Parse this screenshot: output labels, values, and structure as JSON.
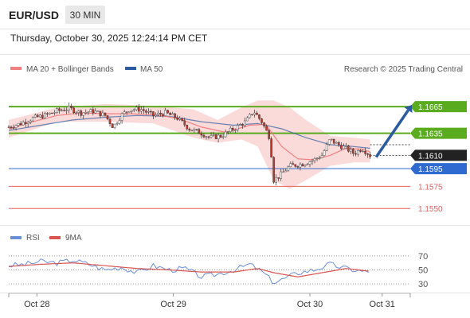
{
  "header": {
    "symbol": "EUR/USD",
    "timeframe": "30 MIN",
    "timestamp": "Thursday, October 30, 2025 12:24:14 PM CET"
  },
  "legend": {
    "ma20_label": "MA 20 + Bollinger Bands",
    "ma50_label": "MA 50",
    "credit": "Research © 2025 Trading Central",
    "rsi_label": "RSI",
    "rsi_ma_label": "9MA"
  },
  "colors": {
    "ma20": "#f08080",
    "ma50": "#2c5aa0",
    "bollinger_fill": "#fad4d4",
    "resistance": "#5aab1e",
    "support_blue": "#2f6ad0",
    "support_red": "#e06060",
    "candle": "#c0392b",
    "arrow": "#2c5aa0",
    "rsi": "#6a8fd8",
    "rsi_ma": "#d9534f"
  },
  "chart_data": [
    {
      "type": "candlestick",
      "title": "",
      "x_ticks": [
        "Oct 28",
        "Oct 29",
        "Oct 30",
        "Oct 31"
      ],
      "current_price": 1.161,
      "levels": [
        {
          "label": "1.1665",
          "value": 1.1665,
          "kind": "resistance"
        },
        {
          "label": "1.1635",
          "value": 1.1635,
          "kind": "resistance"
        },
        {
          "label": "1.1595",
          "value": 1.1595,
          "kind": "support"
        },
        {
          "label": "1.1575",
          "value": 1.1575,
          "kind": "support_minor"
        },
        {
          "label": "1.1550",
          "value": 1.155,
          "kind": "support_minor"
        }
      ],
      "projection": {
        "from": 1.1608,
        "to": 1.1665,
        "direction": "up"
      },
      "ylim": [
        1.1534,
        1.1693
      ],
      "xlim": [
        0,
        100
      ],
      "close_series": [
        {
          "x": 0,
          "y": 1.1642
        },
        {
          "x": 3,
          "y": 1.1646
        },
        {
          "x": 6,
          "y": 1.1652
        },
        {
          "x": 9,
          "y": 1.1655
        },
        {
          "x": 12,
          "y": 1.166
        },
        {
          "x": 15,
          "y": 1.1663
        },
        {
          "x": 18,
          "y": 1.1658
        },
        {
          "x": 21,
          "y": 1.166
        },
        {
          "x": 24,
          "y": 1.1655
        },
        {
          "x": 26,
          "y": 1.1642
        },
        {
          "x": 28,
          "y": 1.1655
        },
        {
          "x": 30,
          "y": 1.1662
        },
        {
          "x": 33,
          "y": 1.1662
        },
        {
          "x": 36,
          "y": 1.1655
        },
        {
          "x": 39,
          "y": 1.1658
        },
        {
          "x": 42,
          "y": 1.1652
        },
        {
          "x": 45,
          "y": 1.164
        },
        {
          "x": 48,
          "y": 1.1635
        },
        {
          "x": 50,
          "y": 1.163
        },
        {
          "x": 53,
          "y": 1.1632
        },
        {
          "x": 56,
          "y": 1.164
        },
        {
          "x": 59,
          "y": 1.1648
        },
        {
          "x": 61,
          "y": 1.166
        },
        {
          "x": 63,
          "y": 1.1648
        },
        {
          "x": 65,
          "y": 1.163
        },
        {
          "x": 66,
          "y": 1.1582
        },
        {
          "x": 67,
          "y": 1.1585
        },
        {
          "x": 70,
          "y": 1.1598
        },
        {
          "x": 73,
          "y": 1.16
        },
        {
          "x": 76,
          "y": 1.1605
        },
        {
          "x": 78,
          "y": 1.161
        },
        {
          "x": 80,
          "y": 1.1628
        },
        {
          "x": 82,
          "y": 1.1622
        },
        {
          "x": 84,
          "y": 1.1618
        },
        {
          "x": 86,
          "y": 1.1612
        },
        {
          "x": 88,
          "y": 1.1618
        },
        {
          "x": 90,
          "y": 1.161
        }
      ],
      "ma20_series": [
        {
          "x": 0,
          "y": 1.164
        },
        {
          "x": 6,
          "y": 1.1648
        },
        {
          "x": 12,
          "y": 1.1655
        },
        {
          "x": 18,
          "y": 1.1658
        },
        {
          "x": 24,
          "y": 1.1657
        },
        {
          "x": 30,
          "y": 1.1657
        },
        {
          "x": 36,
          "y": 1.1656
        },
        {
          "x": 42,
          "y": 1.1652
        },
        {
          "x": 48,
          "y": 1.1642
        },
        {
          "x": 54,
          "y": 1.1636
        },
        {
          "x": 60,
          "y": 1.1644
        },
        {
          "x": 64,
          "y": 1.1645
        },
        {
          "x": 68,
          "y": 1.162
        },
        {
          "x": 72,
          "y": 1.1606
        },
        {
          "x": 76,
          "y": 1.1605
        },
        {
          "x": 80,
          "y": 1.161
        },
        {
          "x": 84,
          "y": 1.1618
        },
        {
          "x": 88,
          "y": 1.1617
        },
        {
          "x": 90,
          "y": 1.1614
        }
      ],
      "ma50_series": [
        {
          "x": 0,
          "y": 1.1638
        },
        {
          "x": 8,
          "y": 1.1644
        },
        {
          "x": 16,
          "y": 1.165
        },
        {
          "x": 24,
          "y": 1.1653
        },
        {
          "x": 32,
          "y": 1.1655
        },
        {
          "x": 40,
          "y": 1.1654
        },
        {
          "x": 48,
          "y": 1.1648
        },
        {
          "x": 56,
          "y": 1.1644
        },
        {
          "x": 62,
          "y": 1.1646
        },
        {
          "x": 68,
          "y": 1.164
        },
        {
          "x": 74,
          "y": 1.163
        },
        {
          "x": 80,
          "y": 1.1622
        },
        {
          "x": 86,
          "y": 1.162
        },
        {
          "x": 90,
          "y": 1.1618
        }
      ],
      "bollinger_upper": [
        {
          "x": 0,
          "y": 1.165
        },
        {
          "x": 12,
          "y": 1.1664
        },
        {
          "x": 24,
          "y": 1.1668
        },
        {
          "x": 36,
          "y": 1.1666
        },
        {
          "x": 46,
          "y": 1.1662
        },
        {
          "x": 52,
          "y": 1.165
        },
        {
          "x": 58,
          "y": 1.1664
        },
        {
          "x": 62,
          "y": 1.1672
        },
        {
          "x": 66,
          "y": 1.1672
        },
        {
          "x": 70,
          "y": 1.1664
        },
        {
          "x": 74,
          "y": 1.165
        },
        {
          "x": 80,
          "y": 1.1632
        },
        {
          "x": 86,
          "y": 1.163
        },
        {
          "x": 90,
          "y": 1.1628
        }
      ],
      "bollinger_lower": [
        {
          "x": 0,
          "y": 1.163
        },
        {
          "x": 12,
          "y": 1.1648
        },
        {
          "x": 24,
          "y": 1.1648
        },
        {
          "x": 36,
          "y": 1.1646
        },
        {
          "x": 46,
          "y": 1.163
        },
        {
          "x": 52,
          "y": 1.1624
        },
        {
          "x": 58,
          "y": 1.1628
        },
        {
          "x": 62,
          "y": 1.162
        },
        {
          "x": 66,
          "y": 1.1582
        },
        {
          "x": 70,
          "y": 1.1572
        },
        {
          "x": 74,
          "y": 1.1582
        },
        {
          "x": 80,
          "y": 1.1598
        },
        {
          "x": 86,
          "y": 1.1602
        },
        {
          "x": 90,
          "y": 1.1602
        }
      ]
    },
    {
      "type": "line",
      "title": "",
      "ylim": [
        20,
        80
      ],
      "y_ticks": [
        70,
        50,
        30
      ],
      "xlim": [
        0,
        100
      ],
      "series": [
        {
          "name": "RSI",
          "values": [
            {
              "x": 0,
              "y": 56
            },
            {
              "x": 4,
              "y": 58
            },
            {
              "x": 8,
              "y": 62
            },
            {
              "x": 12,
              "y": 60
            },
            {
              "x": 16,
              "y": 64
            },
            {
              "x": 20,
              "y": 58
            },
            {
              "x": 24,
              "y": 50
            },
            {
              "x": 28,
              "y": 54
            },
            {
              "x": 32,
              "y": 46
            },
            {
              "x": 36,
              "y": 56
            },
            {
              "x": 40,
              "y": 50
            },
            {
              "x": 44,
              "y": 52
            },
            {
              "x": 48,
              "y": 40
            },
            {
              "x": 52,
              "y": 44
            },
            {
              "x": 56,
              "y": 50
            },
            {
              "x": 60,
              "y": 58
            },
            {
              "x": 63,
              "y": 48
            },
            {
              "x": 66,
              "y": 32
            },
            {
              "x": 68,
              "y": 36
            },
            {
              "x": 72,
              "y": 46
            },
            {
              "x": 76,
              "y": 50
            },
            {
              "x": 80,
              "y": 58
            },
            {
              "x": 84,
              "y": 52
            },
            {
              "x": 88,
              "y": 48
            },
            {
              "x": 90,
              "y": 46
            }
          ]
        },
        {
          "name": "9MA",
          "values": [
            {
              "x": 0,
              "y": 55
            },
            {
              "x": 8,
              "y": 58
            },
            {
              "x": 16,
              "y": 60
            },
            {
              "x": 24,
              "y": 56
            },
            {
              "x": 32,
              "y": 52
            },
            {
              "x": 40,
              "y": 50
            },
            {
              "x": 48,
              "y": 47
            },
            {
              "x": 56,
              "y": 47
            },
            {
              "x": 62,
              "y": 52
            },
            {
              "x": 66,
              "y": 46
            },
            {
              "x": 72,
              "y": 40
            },
            {
              "x": 78,
              "y": 46
            },
            {
              "x": 84,
              "y": 52
            },
            {
              "x": 90,
              "y": 48
            }
          ]
        }
      ]
    }
  ]
}
